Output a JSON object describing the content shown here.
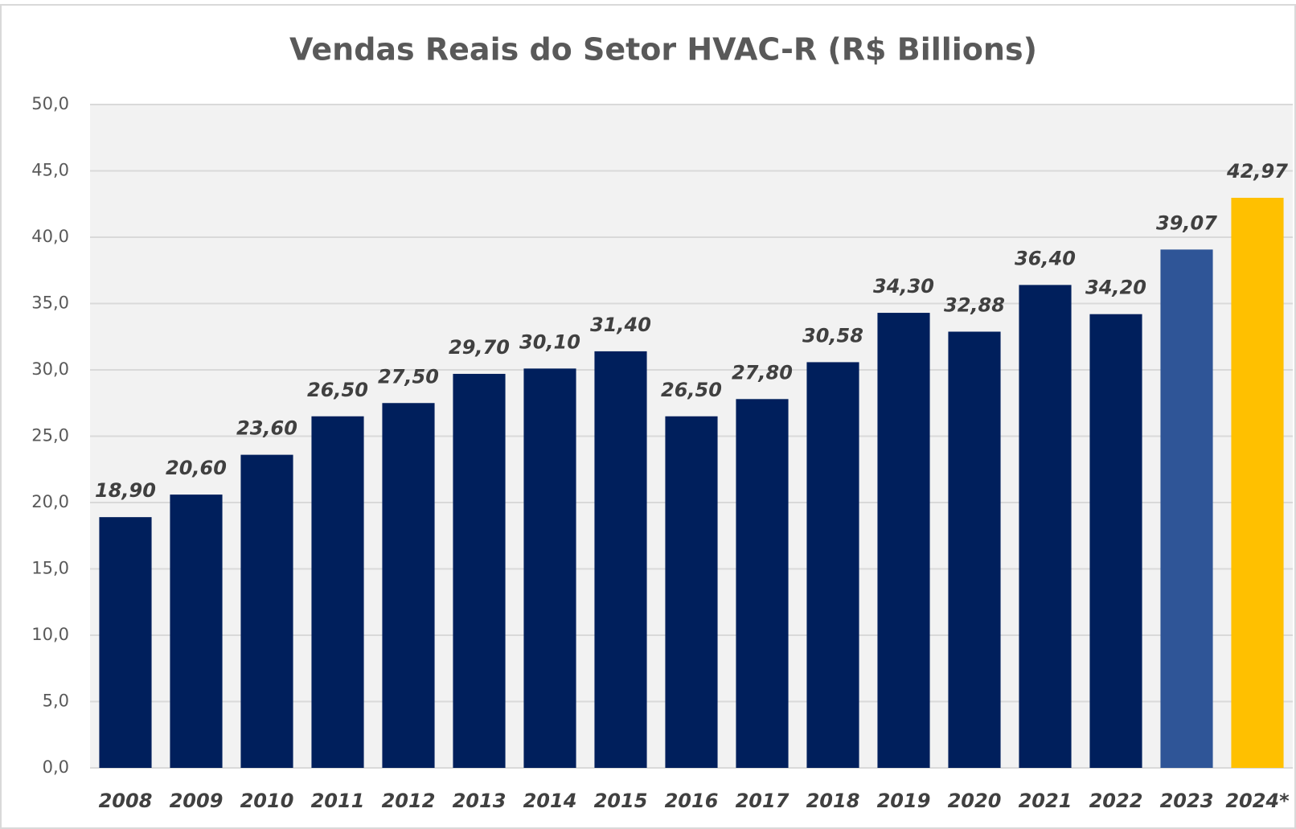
{
  "chart_data": {
    "type": "bar",
    "title": "Vendas Reais do Setor HVAC-R (R$ Billions)",
    "categories": [
      "2008",
      "2009",
      "2010",
      "2011",
      "2012",
      "2013",
      "2014",
      "2015",
      "2016",
      "2017",
      "2018",
      "2019",
      "2020",
      "2021",
      "2022",
      "2023",
      "2024*"
    ],
    "values": [
      18.9,
      20.6,
      23.6,
      26.5,
      27.5,
      29.7,
      30.1,
      31.4,
      26.5,
      27.8,
      30.58,
      34.3,
      32.88,
      36.4,
      34.2,
      39.07,
      42.97
    ],
    "value_labels": [
      "18,90",
      "20,60",
      "23,60",
      "26,50",
      "27,50",
      "29,70",
      "30,10",
      "31,40",
      "26,50",
      "27,80",
      "30,58",
      "34,30",
      "32,88",
      "36,40",
      "34,20",
      "39,07",
      "42,97"
    ],
    "colors": [
      "#001f5c",
      "#001f5c",
      "#001f5c",
      "#001f5c",
      "#001f5c",
      "#001f5c",
      "#001f5c",
      "#001f5c",
      "#001f5c",
      "#001f5c",
      "#001f5c",
      "#001f5c",
      "#001f5c",
      "#001f5c",
      "#001f5c",
      "#2f5597",
      "#ffc000"
    ],
    "ylim": [
      0,
      50
    ],
    "yticks": [
      {
        "value": 0,
        "label": "0,0"
      },
      {
        "value": 5,
        "label": "5,0"
      },
      {
        "value": 10,
        "label": "10,0"
      },
      {
        "value": 15,
        "label": "15,0"
      },
      {
        "value": 20,
        "label": "20,0"
      },
      {
        "value": 25,
        "label": "25,0"
      },
      {
        "value": 30,
        "label": "30,0"
      },
      {
        "value": 35,
        "label": "35,0"
      },
      {
        "value": 40,
        "label": "40,0"
      },
      {
        "value": 45,
        "label": "45,0"
      },
      {
        "value": 50,
        "label": "50,0"
      }
    ],
    "grid": true
  }
}
